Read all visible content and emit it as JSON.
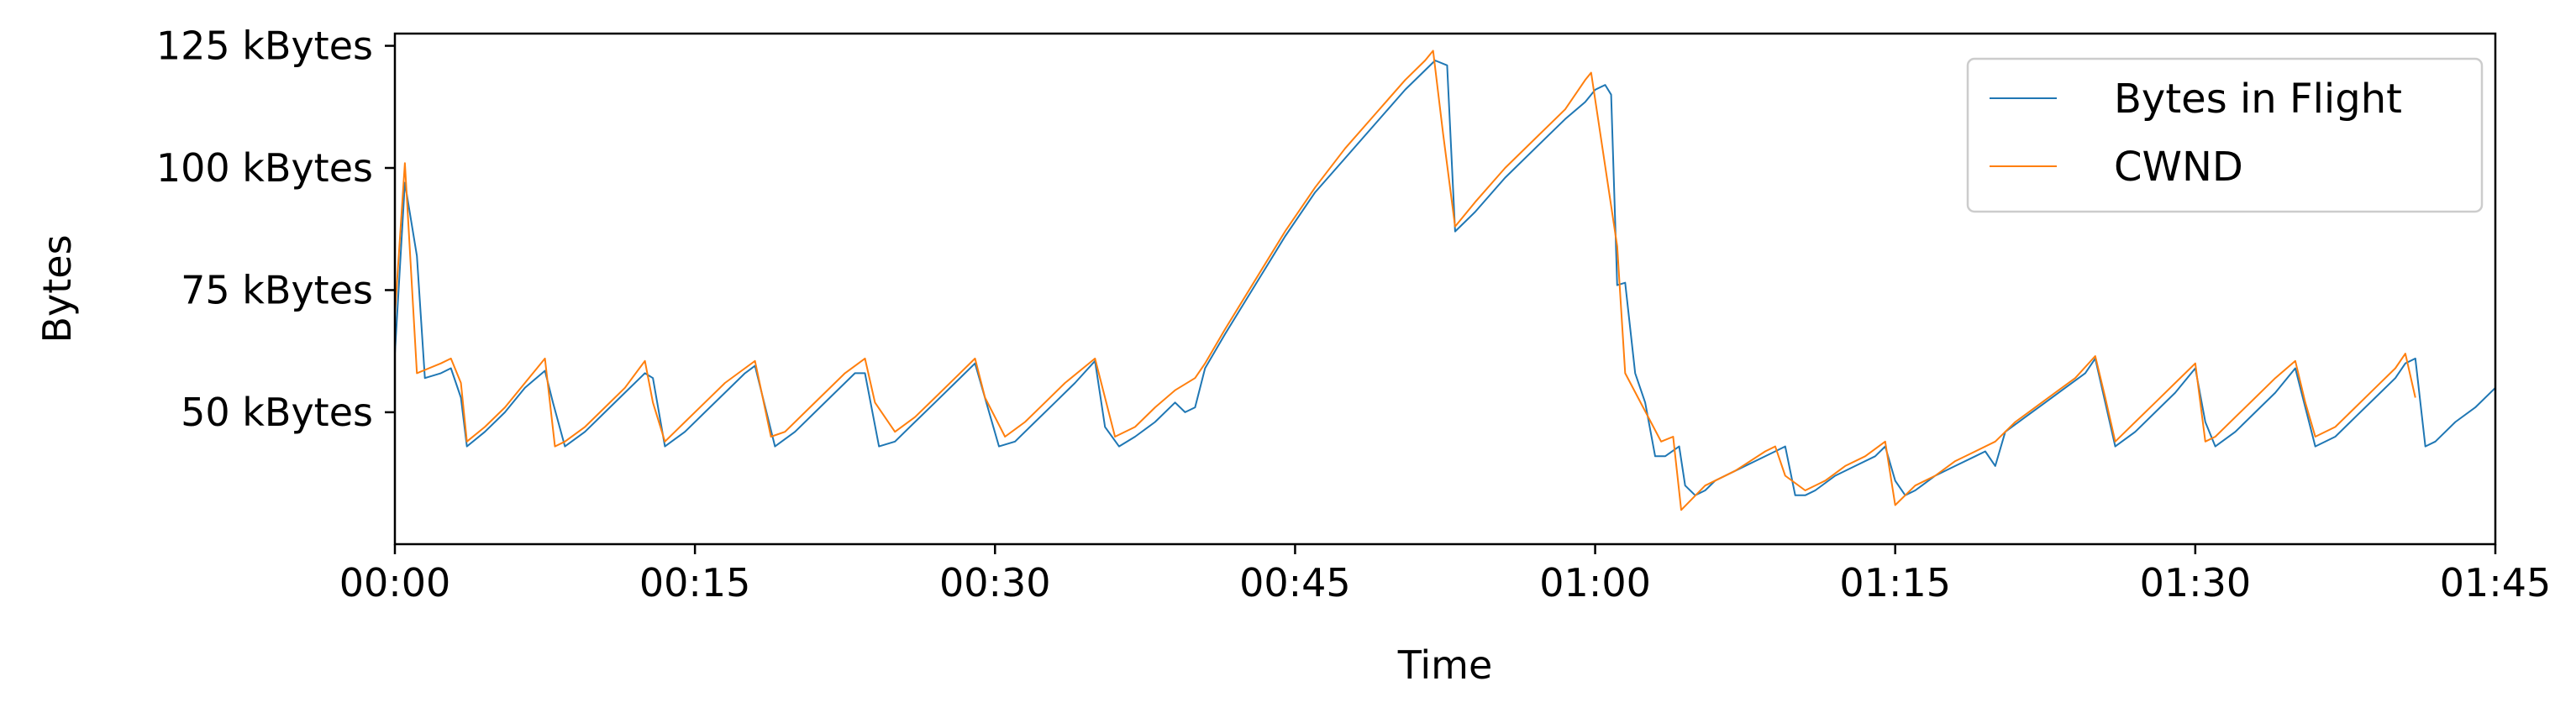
{
  "chart_data": {
    "type": "line",
    "xlabel": "Time",
    "ylabel": "Bytes",
    "x_unit": "seconds",
    "xlim": [
      0,
      105
    ],
    "ylim": [
      23,
      127.5
    ],
    "x_ticks": [
      {
        "value": 0,
        "label": "00:00"
      },
      {
        "value": 15,
        "label": "00:15"
      },
      {
        "value": 30,
        "label": "00:30"
      },
      {
        "value": 45,
        "label": "00:45"
      },
      {
        "value": 60,
        "label": "01:00"
      },
      {
        "value": 75,
        "label": "01:15"
      },
      {
        "value": 90,
        "label": "01:30"
      },
      {
        "value": 105,
        "label": "01:45"
      }
    ],
    "y_ticks": [
      {
        "value": 50,
        "label": "50 kBytes"
      },
      {
        "value": 75,
        "label": "75 kBytes"
      },
      {
        "value": 100,
        "label": "100 kBytes"
      },
      {
        "value": 125,
        "label": "125 kBytes"
      }
    ],
    "legend_position": "top-right",
    "grid": false,
    "series": [
      {
        "name": "Bytes in Flight",
        "color": "#1f77b4",
        "points": [
          [
            0,
            62
          ],
          [
            0.5,
            97
          ],
          [
            1.1,
            82
          ],
          [
            1.5,
            57
          ],
          [
            2.3,
            58
          ],
          [
            2.8,
            59
          ],
          [
            3.3,
            53
          ],
          [
            3.6,
            43
          ],
          [
            4.5,
            46
          ],
          [
            5.5,
            50
          ],
          [
            6.5,
            55
          ],
          [
            7.5,
            58.5
          ],
          [
            7.9,
            52
          ],
          [
            8.5,
            43
          ],
          [
            9.5,
            46
          ],
          [
            10.5,
            50
          ],
          [
            11.5,
            54
          ],
          [
            12.5,
            58
          ],
          [
            12.9,
            57
          ],
          [
            13.5,
            43
          ],
          [
            14.5,
            46
          ],
          [
            15.5,
            50
          ],
          [
            16.5,
            54
          ],
          [
            17.5,
            58
          ],
          [
            18,
            59.5
          ],
          [
            19,
            43
          ],
          [
            20,
            46
          ],
          [
            21,
            50
          ],
          [
            22,
            54
          ],
          [
            23,
            58
          ],
          [
            23.5,
            58
          ],
          [
            24.2,
            43
          ],
          [
            25,
            44
          ],
          [
            26,
            48
          ],
          [
            27,
            52
          ],
          [
            28,
            56
          ],
          [
            29,
            60
          ],
          [
            30.2,
            43
          ],
          [
            31,
            44
          ],
          [
            32,
            48
          ],
          [
            33,
            52
          ],
          [
            34,
            56
          ],
          [
            35,
            60.5
          ],
          [
            35.5,
            47
          ],
          [
            36.2,
            43
          ],
          [
            37,
            45
          ],
          [
            38,
            48
          ],
          [
            39,
            52
          ],
          [
            39.5,
            50
          ],
          [
            40,
            51
          ],
          [
            40.5,
            59
          ],
          [
            41.5,
            66
          ],
          [
            43,
            76
          ],
          [
            44.5,
            86
          ],
          [
            46,
            95
          ],
          [
            47.5,
            102
          ],
          [
            49,
            109
          ],
          [
            50.5,
            116
          ],
          [
            51.5,
            120
          ],
          [
            52,
            122
          ],
          [
            52.6,
            121
          ],
          [
            53,
            87
          ],
          [
            54,
            91
          ],
          [
            55.5,
            98
          ],
          [
            57,
            104
          ],
          [
            58.5,
            110
          ],
          [
            59.5,
            113.5
          ],
          [
            60,
            116
          ],
          [
            60.5,
            117
          ],
          [
            60.8,
            115
          ],
          [
            61.1,
            76
          ],
          [
            61.5,
            76.5
          ],
          [
            62,
            58
          ],
          [
            62.5,
            52
          ],
          [
            63,
            41
          ],
          [
            63.5,
            41
          ],
          [
            64.2,
            43
          ],
          [
            64.5,
            35
          ],
          [
            65,
            33
          ],
          [
            65.5,
            34
          ],
          [
            66,
            36
          ],
          [
            67,
            38
          ],
          [
            68,
            40
          ],
          [
            69,
            42
          ],
          [
            69.5,
            43
          ],
          [
            70,
            33
          ],
          [
            70.5,
            33
          ],
          [
            71,
            34
          ],
          [
            72,
            37
          ],
          [
            73,
            39
          ],
          [
            74,
            41
          ],
          [
            74.5,
            43
          ],
          [
            75,
            36
          ],
          [
            75.5,
            33
          ],
          [
            76,
            34
          ],
          [
            77,
            37
          ],
          [
            78,
            39
          ],
          [
            79,
            41
          ],
          [
            79.5,
            42
          ],
          [
            80,
            39
          ],
          [
            80.5,
            46
          ],
          [
            81.5,
            49
          ],
          [
            82.5,
            52
          ],
          [
            83.5,
            55
          ],
          [
            84.5,
            58
          ],
          [
            85,
            61
          ],
          [
            86,
            43
          ],
          [
            87,
            46
          ],
          [
            88,
            50
          ],
          [
            89,
            54
          ],
          [
            90,
            59
          ],
          [
            90.5,
            48
          ],
          [
            91,
            43
          ],
          [
            92,
            46
          ],
          [
            93,
            50
          ],
          [
            94,
            54
          ],
          [
            95,
            59
          ],
          [
            96,
            43
          ],
          [
            97,
            45
          ],
          [
            98,
            49
          ],
          [
            99,
            53
          ],
          [
            100,
            57
          ],
          [
            100.5,
            60
          ],
          [
            101,
            61
          ],
          [
            101.5,
            43
          ],
          [
            102,
            44
          ],
          [
            103,
            48
          ],
          [
            104,
            51
          ],
          [
            105,
            55
          ]
        ]
      },
      {
        "name": "CWND",
        "color": "#ff7f0e",
        "points": [
          [
            0,
            70
          ],
          [
            0.5,
            101
          ],
          [
            1.1,
            58
          ],
          [
            2.3,
            60
          ],
          [
            2.8,
            61
          ],
          [
            3.3,
            56
          ],
          [
            3.6,
            44
          ],
          [
            4.5,
            47
          ],
          [
            5.5,
            51
          ],
          [
            6.5,
            56
          ],
          [
            7.5,
            61
          ],
          [
            8,
            43
          ],
          [
            8.5,
            44
          ],
          [
            9.5,
            47
          ],
          [
            10.5,
            51
          ],
          [
            11.5,
            55
          ],
          [
            12.5,
            60.5
          ],
          [
            12.9,
            52
          ],
          [
            13.5,
            44
          ],
          [
            14.5,
            48
          ],
          [
            15.5,
            52
          ],
          [
            16.5,
            56
          ],
          [
            17.5,
            59
          ],
          [
            18,
            60.5
          ],
          [
            18.8,
            45
          ],
          [
            19.5,
            46
          ],
          [
            20.5,
            50
          ],
          [
            21.5,
            54
          ],
          [
            22.5,
            58
          ],
          [
            23.5,
            61
          ],
          [
            24,
            52
          ],
          [
            25,
            46
          ],
          [
            26,
            49
          ],
          [
            27,
            53
          ],
          [
            28,
            57
          ],
          [
            29,
            61
          ],
          [
            29.5,
            53
          ],
          [
            30.5,
            45
          ],
          [
            31.5,
            48
          ],
          [
            32.5,
            52
          ],
          [
            33.5,
            56
          ],
          [
            35,
            61
          ],
          [
            36,
            45
          ],
          [
            37,
            47
          ],
          [
            38,
            51
          ],
          [
            39,
            54.5
          ],
          [
            40,
            57
          ],
          [
            40.5,
            60
          ],
          [
            41.5,
            67
          ],
          [
            43,
            77
          ],
          [
            44.5,
            87
          ],
          [
            46,
            96
          ],
          [
            47.5,
            104
          ],
          [
            49,
            111
          ],
          [
            50.5,
            118
          ],
          [
            51.5,
            122
          ],
          [
            51.9,
            124
          ],
          [
            52.4,
            107
          ],
          [
            53,
            88
          ],
          [
            54,
            93
          ],
          [
            55.5,
            100
          ],
          [
            57,
            106
          ],
          [
            58.5,
            112
          ],
          [
            59.5,
            118
          ],
          [
            59.8,
            119.5
          ],
          [
            61.1,
            84
          ],
          [
            61.5,
            58
          ],
          [
            63.3,
            44
          ],
          [
            63.9,
            45
          ],
          [
            64.3,
            30
          ],
          [
            65.5,
            35
          ],
          [
            67,
            38
          ],
          [
            68.5,
            42
          ],
          [
            69,
            43
          ],
          [
            69.5,
            37
          ],
          [
            70.5,
            34
          ],
          [
            71.5,
            36
          ],
          [
            72.5,
            39
          ],
          [
            73.5,
            41
          ],
          [
            74.5,
            44
          ],
          [
            75,
            31
          ],
          [
            76,
            35
          ],
          [
            77,
            37
          ],
          [
            78,
            40
          ],
          [
            79,
            42
          ],
          [
            80,
            44
          ],
          [
            81,
            48
          ],
          [
            82,
            51
          ],
          [
            83,
            54
          ],
          [
            84,
            57
          ],
          [
            85,
            61.5
          ],
          [
            85.5,
            53
          ],
          [
            86,
            44
          ],
          [
            87,
            48
          ],
          [
            88,
            52
          ],
          [
            89,
            56
          ],
          [
            90,
            60
          ],
          [
            90.5,
            44
          ],
          [
            91,
            45
          ],
          [
            92,
            49
          ],
          [
            93,
            53
          ],
          [
            94,
            57
          ],
          [
            95,
            60.5
          ],
          [
            95.5,
            52
          ],
          [
            96,
            45
          ],
          [
            97,
            47
          ],
          [
            98,
            51
          ],
          [
            99,
            55
          ],
          [
            100,
            59
          ],
          [
            100.5,
            62
          ],
          [
            101,
            53
          ]
        ]
      }
    ]
  }
}
